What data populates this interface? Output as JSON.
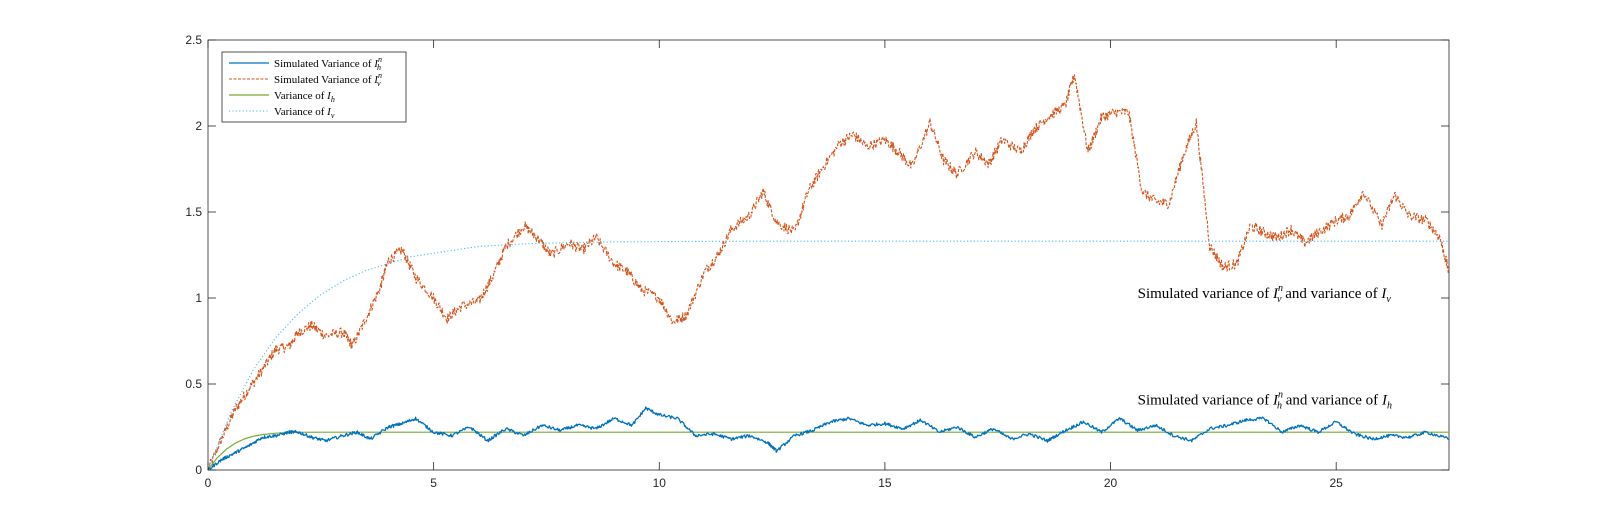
{
  "chart_data": {
    "type": "line",
    "title": "",
    "xlabel": "",
    "ylabel": "",
    "xlim": [
      0,
      27.5
    ],
    "ylim": [
      0,
      2.5
    ],
    "xticks": [
      0,
      5,
      10,
      15,
      20,
      25
    ],
    "xtick_labels": [
      "0",
      "5",
      "10",
      "15",
      "20",
      "25"
    ],
    "yticks": [
      0,
      0.5,
      1,
      1.5,
      2,
      2.5
    ],
    "ytick_labels": [
      "0",
      "0.5",
      "1",
      "1.5",
      "2",
      "2.5"
    ],
    "grid": false,
    "legend_placement": "top-left",
    "annotations": [
      {
        "id": "annot-iv",
        "x": 20.6,
        "y": 1.0,
        "prefix": "Simulated variance of ",
        "v1": "I",
        "s1": "v",
        "p1": "n",
        "mid": " and variance of ",
        "v2": "I",
        "s2": "v"
      },
      {
        "id": "annot-ih",
        "x": 20.6,
        "y": 0.38,
        "prefix": "Simulated variance of ",
        "v1": "I",
        "s1": "h",
        "p1": "n",
        "mid": " and variance of ",
        "v2": "I",
        "s2": "h"
      }
    ],
    "series": [
      {
        "name": "Simulated Variance of Î_h^n",
        "legend": {
          "prefix": "Simulated Variance of ",
          "var": "I",
          "sub": "h",
          "sup": "n"
        },
        "color": "#0072BD",
        "dash": "",
        "width": 1.3,
        "noise": 0.009,
        "x": [
          0,
          0.3,
          0.6,
          0.9,
          1.2,
          1.5,
          1.8,
          2.0,
          2.3,
          2.6,
          3.0,
          3.3,
          3.6,
          4.0,
          4.3,
          4.6,
          5.0,
          5.4,
          5.8,
          6.2,
          6.6,
          7.0,
          7.4,
          7.8,
          8.2,
          8.6,
          9.0,
          9.4,
          9.7,
          10.0,
          10.4,
          10.8,
          11.2,
          11.6,
          12.0,
          12.4,
          12.6,
          13.0,
          13.4,
          13.8,
          14.2,
          14.6,
          15.0,
          15.4,
          15.8,
          16.2,
          16.6,
          17.0,
          17.4,
          17.8,
          18.2,
          18.6,
          19.0,
          19.4,
          19.8,
          20.2,
          20.6,
          21.0,
          21.4,
          21.8,
          22.2,
          22.6,
          23.0,
          23.4,
          23.8,
          24.2,
          24.6,
          25.0,
          25.4,
          25.8,
          26.2,
          26.6,
          27.0,
          27.5
        ],
        "y": [
          0.0,
          0.06,
          0.1,
          0.14,
          0.19,
          0.2,
          0.22,
          0.22,
          0.19,
          0.17,
          0.2,
          0.22,
          0.18,
          0.25,
          0.27,
          0.3,
          0.22,
          0.2,
          0.25,
          0.17,
          0.24,
          0.2,
          0.26,
          0.23,
          0.26,
          0.24,
          0.3,
          0.26,
          0.36,
          0.32,
          0.3,
          0.2,
          0.21,
          0.18,
          0.2,
          0.16,
          0.11,
          0.2,
          0.23,
          0.28,
          0.3,
          0.26,
          0.27,
          0.24,
          0.29,
          0.22,
          0.25,
          0.19,
          0.24,
          0.18,
          0.21,
          0.17,
          0.23,
          0.28,
          0.22,
          0.3,
          0.23,
          0.26,
          0.2,
          0.17,
          0.24,
          0.26,
          0.29,
          0.3,
          0.22,
          0.26,
          0.22,
          0.28,
          0.21,
          0.18,
          0.2,
          0.19,
          0.22,
          0.18
        ]
      },
      {
        "name": "Simulated Variance of Î_v^n",
        "legend": {
          "prefix": "Simulated Variance of ",
          "var": "I",
          "sub": "v",
          "sup": "n"
        },
        "color": "#D95319",
        "dash": "3,1.5",
        "width": 1.1,
        "noise": 0.03,
        "x": [
          0,
          0.3,
          0.6,
          0.9,
          1.2,
          1.5,
          1.8,
          2.0,
          2.3,
          2.6,
          3.0,
          3.2,
          3.5,
          3.8,
          4.0,
          4.3,
          4.6,
          5.0,
          5.3,
          5.6,
          6.0,
          6.3,
          6.6,
          7.0,
          7.3,
          7.6,
          8.0,
          8.3,
          8.6,
          9.0,
          9.3,
          9.6,
          10.0,
          10.3,
          10.6,
          11.0,
          11.3,
          11.6,
          12.0,
          12.3,
          12.6,
          13.0,
          13.3,
          13.6,
          14.0,
          14.3,
          14.6,
          15.0,
          15.3,
          15.6,
          16.0,
          16.3,
          16.6,
          17.0,
          17.3,
          17.6,
          18.0,
          18.3,
          18.6,
          19.0,
          19.2,
          19.5,
          19.8,
          20.1,
          20.4,
          20.7,
          21.0,
          21.3,
          21.6,
          21.9,
          22.2,
          22.5,
          22.8,
          23.1,
          23.4,
          23.7,
          24.0,
          24.3,
          24.6,
          25.0,
          25.3,
          25.6,
          26.0,
          26.3,
          26.6,
          27.0,
          27.3,
          27.5
        ],
        "y": [
          0.0,
          0.18,
          0.35,
          0.47,
          0.58,
          0.7,
          0.72,
          0.8,
          0.84,
          0.78,
          0.8,
          0.72,
          0.88,
          1.05,
          1.22,
          1.28,
          1.12,
          1.0,
          0.88,
          0.95,
          0.98,
          1.12,
          1.3,
          1.42,
          1.35,
          1.25,
          1.32,
          1.28,
          1.35,
          1.2,
          1.15,
          1.05,
          1.0,
          0.86,
          0.9,
          1.15,
          1.25,
          1.4,
          1.48,
          1.62,
          1.44,
          1.38,
          1.62,
          1.75,
          1.9,
          1.95,
          1.88,
          1.92,
          1.85,
          1.76,
          2.02,
          1.8,
          1.72,
          1.85,
          1.78,
          1.92,
          1.85,
          1.98,
          2.05,
          2.12,
          2.3,
          1.85,
          2.05,
          2.08,
          2.08,
          1.62,
          1.56,
          1.55,
          1.82,
          2.02,
          1.3,
          1.18,
          1.2,
          1.42,
          1.38,
          1.35,
          1.4,
          1.32,
          1.38,
          1.45,
          1.48,
          1.62,
          1.42,
          1.6,
          1.48,
          1.45,
          1.35,
          1.15
        ]
      },
      {
        "name": "Variance of Î_h",
        "legend": {
          "prefix": "Variance of ",
          "var": "I",
          "sub": "h",
          "sup": ""
        },
        "color": "#77AC30",
        "dash": "",
        "width": 1.2,
        "noise": 0,
        "x": [
          0,
          0.2,
          0.4,
          0.6,
          0.8,
          1.0,
          1.2,
          1.5,
          2.0,
          2.5,
          3.0,
          27.5
        ],
        "y": [
          0.0,
          0.07,
          0.12,
          0.155,
          0.18,
          0.196,
          0.206,
          0.214,
          0.219,
          0.22,
          0.22,
          0.22
        ]
      },
      {
        "name": "Variance of Î_v",
        "legend": {
          "prefix": "Variance of ",
          "var": "I",
          "sub": "v",
          "sup": ""
        },
        "color": "#4DBEEE",
        "dash": "1.2,2.2",
        "width": 1.1,
        "noise": 0,
        "x": [
          0,
          0.5,
          1.0,
          1.5,
          2.0,
          2.5,
          3.0,
          3.5,
          4.0,
          4.5,
          5.0,
          5.5,
          6.0,
          7.0,
          8.0,
          9.0,
          10.0,
          12.0,
          15.0,
          20.0,
          25.0,
          27.5
        ],
        "y": [
          0.0,
          0.33,
          0.58,
          0.77,
          0.91,
          1.02,
          1.1,
          1.16,
          1.2,
          1.24,
          1.26,
          1.28,
          1.3,
          1.315,
          1.322,
          1.326,
          1.328,
          1.33,
          1.33,
          1.33,
          1.33,
          1.33
        ]
      }
    ]
  }
}
